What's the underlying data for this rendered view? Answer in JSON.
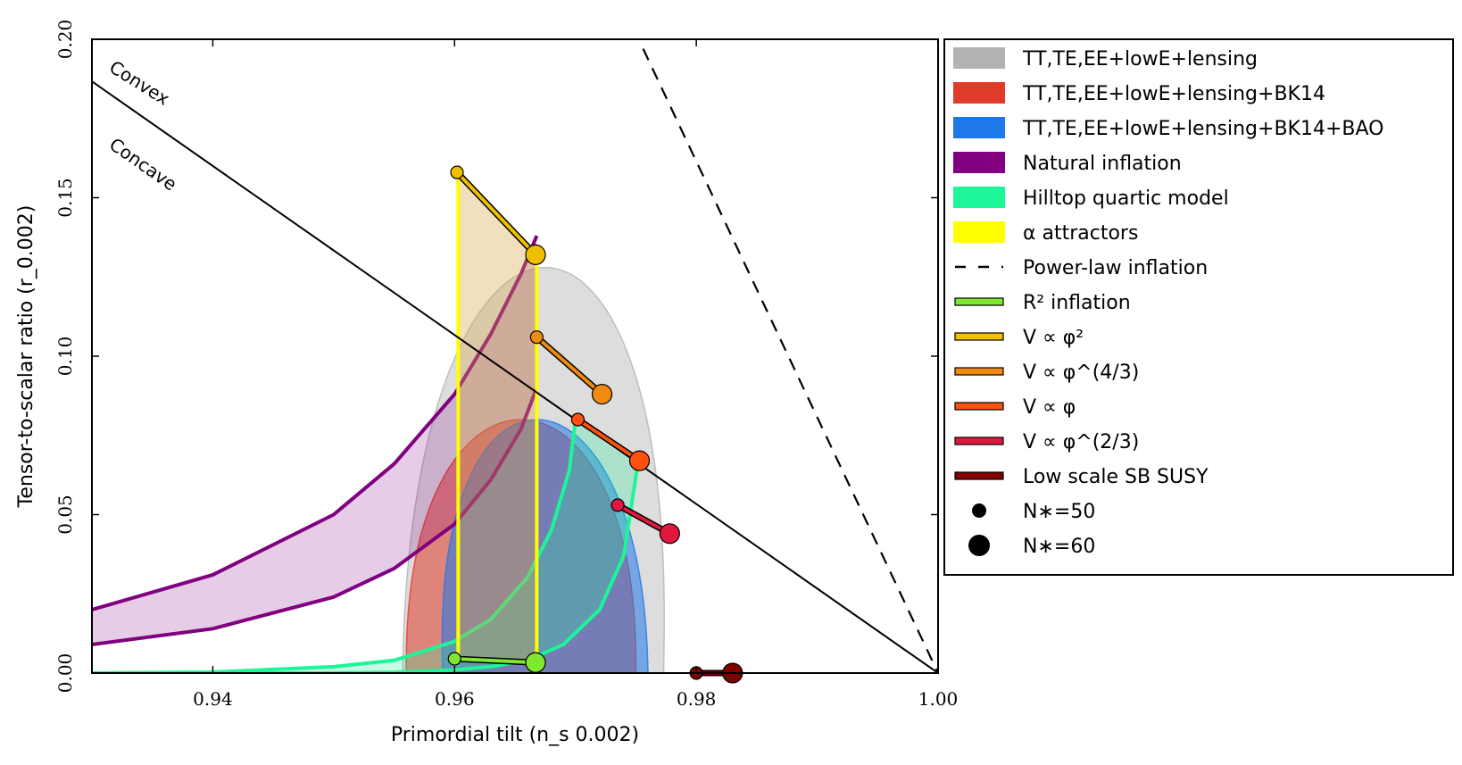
{
  "chart_data": {
    "type": "scatter",
    "xlabel": "Primordial tilt (n_s 0.002)",
    "ylabel": "Tensor-to-scalar ratio (r_0.002)",
    "xlim": [
      0.93,
      1.0
    ],
    "ylim": [
      0.0,
      0.2
    ],
    "x_ticks": [
      "0.94",
      "0.96",
      "0.98",
      "1.00"
    ],
    "x_tick_values": [
      0.94,
      0.96,
      0.98,
      1.0
    ],
    "y_ticks": [
      "0.00",
      "0.05",
      "0.10",
      "0.15",
      "0.20"
    ],
    "y_tick_values": [
      0.0,
      0.05,
      0.1,
      0.15,
      0.2
    ],
    "annotations": [
      "Convex",
      "Concave"
    ],
    "legend_position": "outside right",
    "legend": [
      {
        "label": "TT,TE,EE+lowE+lensing",
        "kind": "patch",
        "color": "#b3b3b3"
      },
      {
        "label": "TT,TE,EE+lowE+lensing+BK14",
        "kind": "patch",
        "color": "#e03a2a"
      },
      {
        "label": "TT,TE,EE+lowE+lensing+BK14+BAO",
        "kind": "patch",
        "color": "#1f78e8"
      },
      {
        "label": "Natural inflation",
        "kind": "patch",
        "color": "#800080"
      },
      {
        "label": "Hilltop quartic model",
        "kind": "patch",
        "color": "#1cf598"
      },
      {
        "label": "α attractors",
        "kind": "patch",
        "color": "#ffff00"
      },
      {
        "label": "Power-law inflation",
        "kind": "dash",
        "color": "#000000"
      },
      {
        "label": "R² inflation",
        "kind": "line",
        "color": "#7ee830"
      },
      {
        "label": "V ∝ φ²",
        "kind": "line",
        "color": "#f0c000"
      },
      {
        "label": "V ∝ φ^(4/3)",
        "kind": "line",
        "color": "#f08a10"
      },
      {
        "label": "V ∝ φ",
        "kind": "line",
        "color": "#ff5010"
      },
      {
        "label": "V ∝ φ^(2/3)",
        "kind": "line",
        "color": "#e01840"
      },
      {
        "label": "Low scale SB SUSY",
        "kind": "line",
        "color": "#800000"
      },
      {
        "label": "N∗=50",
        "kind": "dot-small",
        "color": "#000000"
      },
      {
        "label": "N∗=60",
        "kind": "dot-large",
        "color": "#000000"
      }
    ],
    "contours": [
      {
        "name": "TT,TE,EE+lowE+lensing",
        "color": "#b3b3b3",
        "center_ns": 0.9665,
        "n_half": 0.0108,
        "r_max": 0.128,
        "r_peak_ns": 0.9675
      },
      {
        "name": "TT,TE,EE+lowE+lensing+BK14",
        "color": "#e03a2a",
        "center_ns": 0.9655,
        "n_half": 0.0095,
        "r_max": 0.08,
        "r_peak_ns": 0.9655
      },
      {
        "name": "TT,TE,EE+lowE+lensing+BK14+BAO",
        "color": "#1f78e8",
        "center_ns": 0.9675,
        "n_half": 0.0085,
        "r_max": 0.08,
        "r_peak_ns": 0.9668
      }
    ],
    "series": [
      {
        "name": "Convex/Concave boundary",
        "type": "line",
        "color": "#000000",
        "x": [
          0.93,
          1.0
        ],
        "y": [
          0.1867,
          0.0
        ]
      },
      {
        "name": "Power-law inflation",
        "type": "dashed-line",
        "color": "#000000",
        "x": [
          0.9756,
          1.0
        ],
        "y": [
          0.197,
          0.0
        ]
      },
      {
        "name": "Natural inflation",
        "type": "band",
        "color": "#800080",
        "upper": {
          "x": [
            0.93,
            0.94,
            0.95,
            0.955,
            0.96,
            0.963,
            0.9655,
            0.9668
          ],
          "y": [
            0.02,
            0.031,
            0.05,
            0.066,
            0.088,
            0.107,
            0.126,
            0.138
          ]
        },
        "lower": {
          "x": [
            0.93,
            0.94,
            0.95,
            0.955,
            0.96,
            0.963,
            0.9655,
            0.9668
          ],
          "y": [
            0.009,
            0.014,
            0.024,
            0.033,
            0.047,
            0.061,
            0.077,
            0.09
          ]
        }
      },
      {
        "name": "Hilltop quartic model",
        "type": "band",
        "color": "#1cf598",
        "upper": {
          "x": [
            0.93,
            0.94,
            0.95,
            0.955,
            0.96,
            0.963,
            0.966,
            0.968,
            0.9695,
            0.97
          ],
          "y": [
            0.0,
            0.0003,
            0.002,
            0.004,
            0.01,
            0.017,
            0.03,
            0.045,
            0.064,
            0.08
          ]
        },
        "lower": {
          "x": [
            0.93,
            0.94,
            0.95,
            0.955,
            0.96,
            0.963,
            0.966,
            0.969,
            0.972,
            0.974,
            0.9752
          ],
          "y": [
            0.0,
            0.0,
            0.0,
            0.0002,
            0.001,
            0.002,
            0.004,
            0.009,
            0.02,
            0.037,
            0.067
          ]
        }
      },
      {
        "name": "α attractors",
        "type": "band",
        "color": "#ffff00",
        "vertical_lines": [
          {
            "x": 0.9603,
            "y_low": 0.0045,
            "y_high": 0.158
          },
          {
            "x": 0.9668,
            "y_low": 0.0033,
            "y_high": 0.132
          }
        ]
      },
      {
        "name": "R² inflation",
        "type": "segment",
        "color": "#7ee830",
        "x": [
          0.96,
          0.9667
        ],
        "y": [
          0.0045,
          0.0033
        ]
      },
      {
        "name": "V ∝ φ²",
        "type": "segment",
        "color": "#f0c000",
        "x": [
          0.9602,
          0.9667
        ],
        "y": [
          0.158,
          0.132
        ]
      },
      {
        "name": "V ∝ φ^(4/3)",
        "type": "segment",
        "color": "#f08a10",
        "x": [
          0.9668,
          0.9722
        ],
        "y": [
          0.106,
          0.088
        ]
      },
      {
        "name": "V ∝ φ",
        "type": "segment",
        "color": "#ff5010",
        "x": [
          0.9702,
          0.9753
        ],
        "y": [
          0.08,
          0.067
        ]
      },
      {
        "name": "V ∝ φ^(2/3)",
        "type": "segment",
        "color": "#e01840",
        "x": [
          0.9735,
          0.9778
        ],
        "y": [
          0.053,
          0.044
        ]
      },
      {
        "name": "Low scale SB SUSY",
        "type": "segment",
        "color": "#800000",
        "x": [
          0.98,
          0.983
        ],
        "y": [
          0.0,
          0.0
        ]
      }
    ]
  }
}
